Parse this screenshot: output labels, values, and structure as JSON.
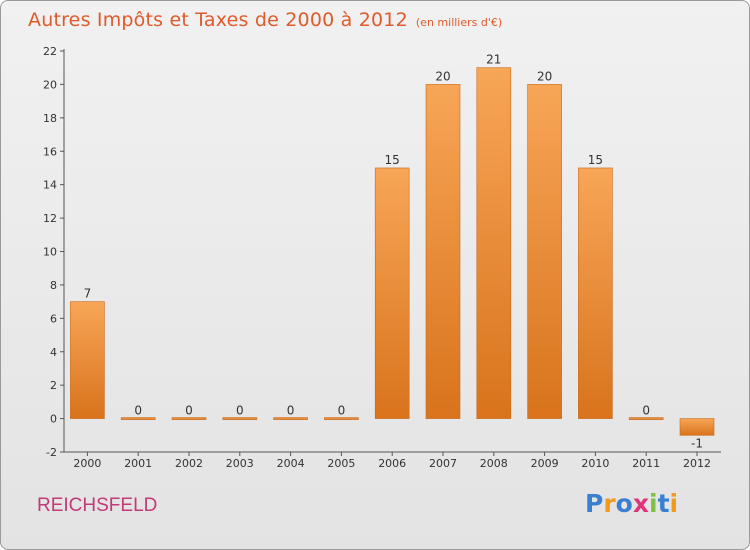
{
  "title": "Autres Impôts et Taxes de 2000 à 2012",
  "unit_note": "(en milliers d'€)",
  "location": "REICHSFELD",
  "brand": {
    "letters": [
      "P",
      "r",
      "o",
      "x",
      "i",
      "t",
      "i"
    ],
    "colors": [
      "#3a7fd1",
      "#f29a1e",
      "#3a7fd1",
      "#e0357b",
      "#7dc242",
      "#3a7fd1",
      "#f29a1e"
    ]
  },
  "colors": {
    "bar_light": "#f7a657",
    "bar_dark": "#d9731c",
    "title": "#e05a2a",
    "location": "#c23a78"
  },
  "chart_data": {
    "type": "bar",
    "title": "Autres Impôts et Taxes de 2000 à 2012",
    "subtitle": "(en milliers d'€)",
    "categories": [
      "2000",
      "2001",
      "2002",
      "2003",
      "2004",
      "2005",
      "2006",
      "2007",
      "2008",
      "2009",
      "2010",
      "2011",
      "2012"
    ],
    "values": [
      7,
      0,
      0,
      0,
      0,
      0,
      15,
      20,
      21,
      20,
      15,
      0,
      -1
    ],
    "value_labels": [
      "7",
      "0",
      "0",
      "0",
      "0",
      "0",
      "15",
      "20",
      "21",
      "20",
      "15",
      "0",
      "-1"
    ],
    "yticks": [
      -2,
      0,
      2,
      4,
      6,
      8,
      10,
      12,
      14,
      16,
      18,
      20,
      22
    ],
    "ylim": [
      -2,
      22
    ],
    "grid": false,
    "xlabel": "",
    "ylabel": ""
  }
}
